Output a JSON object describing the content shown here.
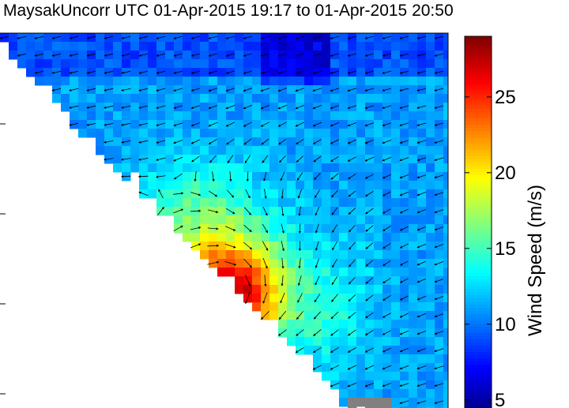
{
  "title": "MaysakUncorr UTC 01-Apr-2015 19:17 to 01-Apr-2015 20:50",
  "chart_data": {
    "type": "heatmap",
    "title": "MaysakUncorr UTC 01-Apr-2015 19:17 to 01-Apr-2015 20:50",
    "colorbar": {
      "label": "Wind Speed (m/s)",
      "ticks": [
        5,
        10,
        15,
        20,
        25
      ],
      "range": [
        4,
        29
      ],
      "colormap": "jet"
    },
    "field": {
      "background_speed": 11,
      "vortex_peak_speed": 28,
      "vortex_center_approx": [
        290,
        375
      ],
      "missing_color": "#808080"
    }
  }
}
